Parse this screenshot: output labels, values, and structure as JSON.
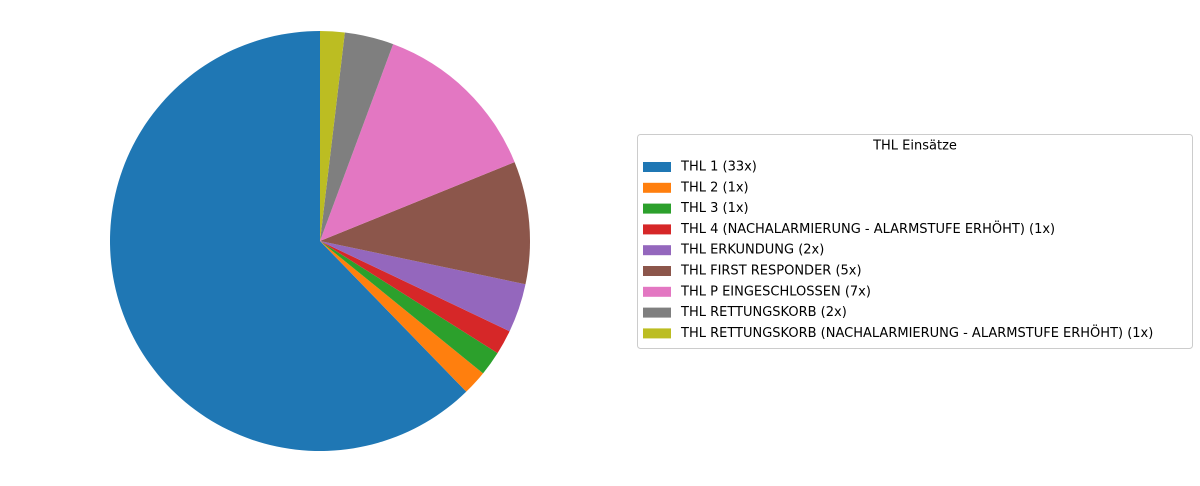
{
  "chart_data": {
    "type": "pie",
    "legend_title": "THL Einsätze",
    "categories": [
      "THL 1 (33x)",
      "THL 2 (1x)",
      "THL 3 (1x)",
      "THL 4 (NACHALARMIERUNG - ALARMSTUFE ERHÖHT) (1x)",
      "THL ERKUNDUNG (2x)",
      "THL FIRST RESPONDER (5x)",
      "THL P EINGESCHLOSSEN (7x)",
      "THL RETTUNGSKORB (2x)",
      "THL RETTUNGSKORB (NACHALARMIERUNG - ALARMSTUFE ERHÖHT) (1x)"
    ],
    "values": [
      33,
      1,
      1,
      1,
      2,
      5,
      7,
      2,
      1
    ],
    "colors": [
      "#1f77b4",
      "#ff7f0e",
      "#2ca02c",
      "#d62728",
      "#9467bd",
      "#8c564b",
      "#e377c2",
      "#7f7f7f",
      "#bcbd22"
    ],
    "legend_position": "right"
  }
}
